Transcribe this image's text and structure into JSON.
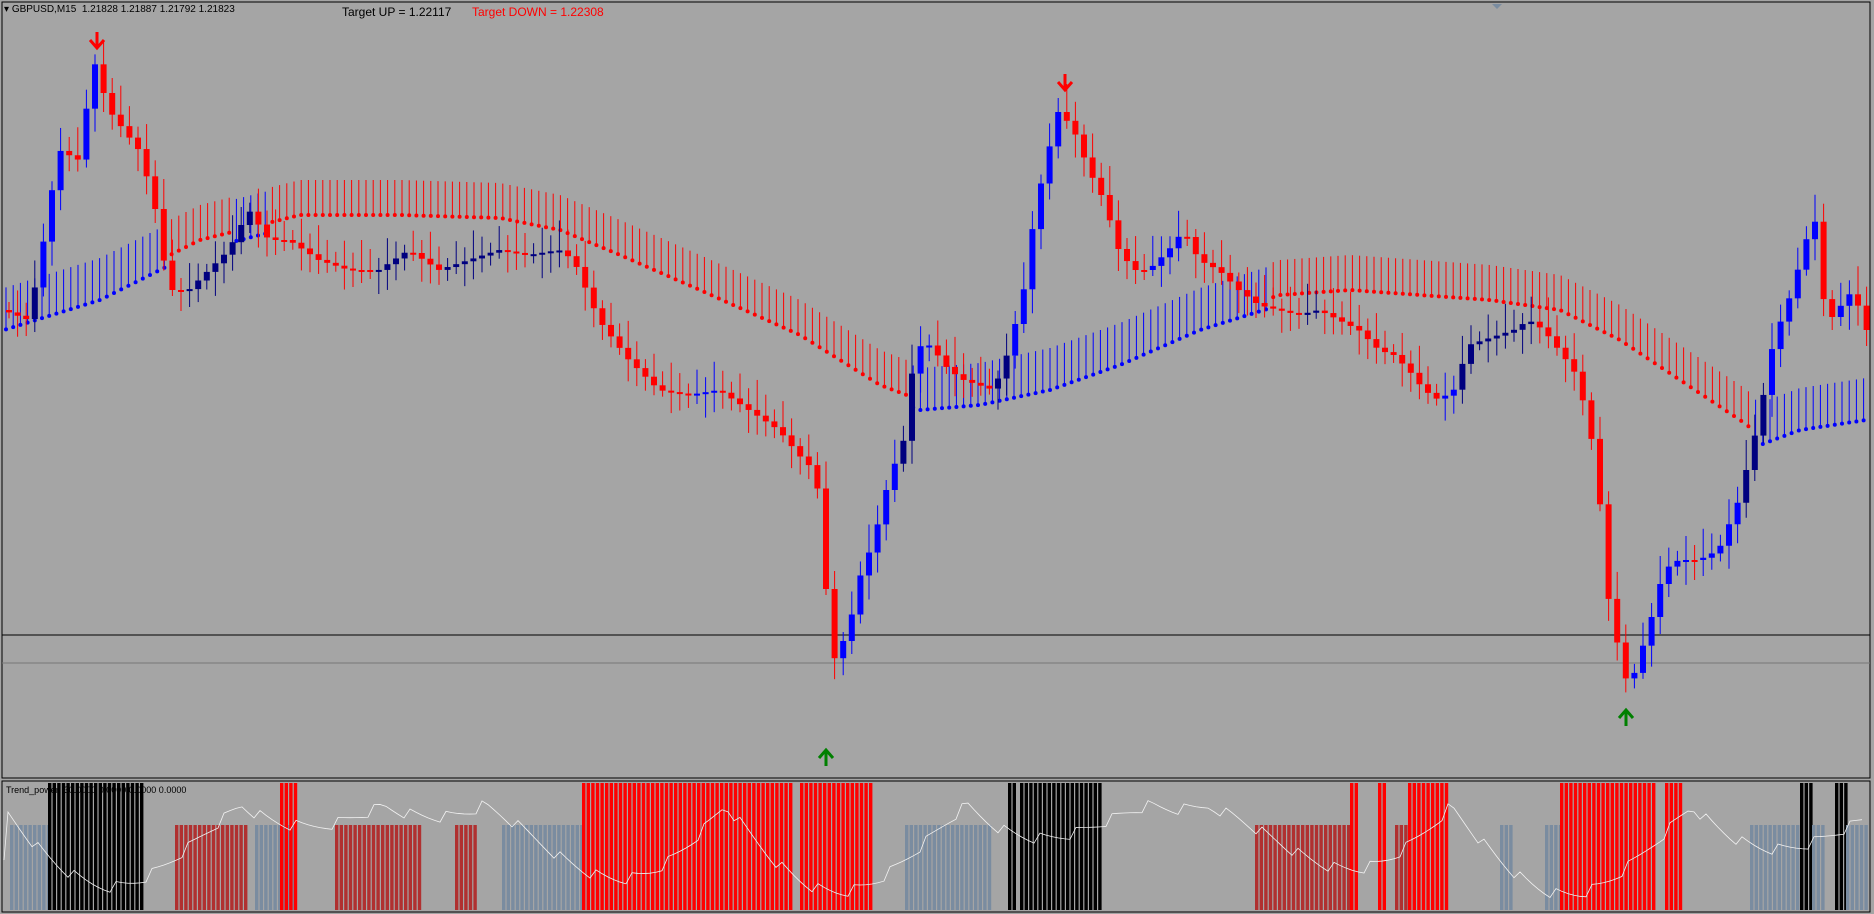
{
  "symbol": {
    "name": "GBPUSD,M15",
    "ohlc": "1.21828 1.21887 1.21792 1.21823"
  },
  "targets": {
    "up": "Target UP = 1.22117",
    "down": "Target DOWN = 1.22308"
  },
  "indicator": {
    "label": "Trend_power",
    "values": "30.0000 0.0000 0.0000 0.0000"
  },
  "colors": {
    "background": "#a5a5a5",
    "bull_candle": "#0000ff",
    "bear_candle": "#ff0000",
    "dark_bull_candle": "#00007f",
    "arrow_down": "#ff0000",
    "arrow_up": "#008000",
    "band_upper": "#ff0000",
    "band_lower": "#0000ff",
    "hist_black": "#000000",
    "hist_red": "#ff0000",
    "hist_darkred": "#b03030",
    "hist_slate": "#7a8ca0",
    "target_down_text": "#ff0000"
  },
  "chart_data": {
    "type": "candlestick",
    "symbol": "GBPUSD",
    "timeframe": "M15",
    "signals": [
      {
        "direction": "down",
        "index": 10
      },
      {
        "direction": "down",
        "index": 127
      },
      {
        "direction": "up",
        "index": 99
      },
      {
        "direction": "up",
        "index": 195
      }
    ],
    "indicator_panel": {
      "name": "Trend_power",
      "values": [
        30.0,
        0.0,
        0.0,
        0.0
      ]
    }
  }
}
